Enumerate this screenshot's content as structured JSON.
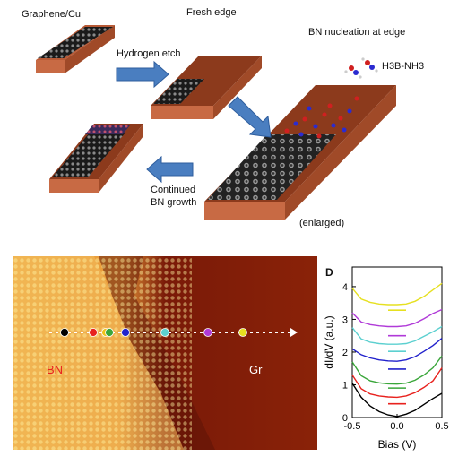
{
  "labels": {
    "graphene_cu": "Graphene/Cu",
    "fresh_edge": "Fresh edge",
    "bn_nucleation": "BN nucleation at edge",
    "hydrogen_etch": "Hydrogen etch",
    "precursor": "H3B-NH3",
    "continued_1": "Continued",
    "continued_2": "BN growth",
    "enlarged": "(enlarged)",
    "bn": "BN",
    "gr": "Gr",
    "panel_letter": "D"
  },
  "colors": {
    "cu_top": "#8c3a1c",
    "cu_side": "#b85a36",
    "arrow": "#4a7ec0",
    "bn_red": "#e0282a",
    "gr_white": "#ffffff"
  },
  "spectroscopy_markers": [
    "#000000",
    "#e8221e",
    "#f0c21a",
    "#3aa63a",
    "#2222cc",
    "#5cd0d0",
    "#b03ad8",
    "#e6e020"
  ],
  "chart_data": {
    "type": "line",
    "xlabel": "Bias (V)",
    "ylabel": "dI/dV (a.u.)",
    "xlim": [
      -0.5,
      0.5
    ],
    "ylim": [
      0,
      4.6
    ],
    "xticks": [
      "-0.5",
      "0.0",
      "0.5"
    ],
    "yticks": [
      "0",
      "1",
      "2",
      "3",
      "4"
    ],
    "x": [
      -0.5,
      -0.4,
      -0.3,
      -0.2,
      -0.1,
      0.0,
      0.1,
      0.2,
      0.3,
      0.4,
      0.5
    ],
    "series": [
      {
        "color": "#000000",
        "values": [
          1.05,
          0.62,
          0.35,
          0.18,
          0.08,
          0.03,
          0.1,
          0.22,
          0.4,
          0.58,
          0.74
        ]
      },
      {
        "color": "#e8221e",
        "values": [
          1.3,
          0.88,
          0.72,
          0.66,
          0.63,
          0.62,
          0.66,
          0.76,
          0.92,
          1.12,
          1.52
        ]
      },
      {
        "color": "#3aa63a",
        "values": [
          1.7,
          1.28,
          1.12,
          1.06,
          1.03,
          1.02,
          1.05,
          1.14,
          1.3,
          1.52,
          1.88
        ]
      },
      {
        "color": "#2222cc",
        "values": [
          2.1,
          1.92,
          1.82,
          1.76,
          1.73,
          1.72,
          1.76,
          1.86,
          2.02,
          2.2,
          2.42
        ]
      },
      {
        "color": "#5cd0d0",
        "values": [
          2.75,
          2.4,
          2.3,
          2.26,
          2.24,
          2.24,
          2.26,
          2.34,
          2.48,
          2.62,
          2.78
        ]
      },
      {
        "color": "#b03ad8",
        "values": [
          3.2,
          2.92,
          2.84,
          2.8,
          2.78,
          2.78,
          2.8,
          2.88,
          3.02,
          3.18,
          3.3
        ]
      },
      {
        "color": "#e6e020",
        "values": [
          3.95,
          3.62,
          3.52,
          3.47,
          3.45,
          3.45,
          3.47,
          3.55,
          3.7,
          3.9,
          4.1
        ]
      }
    ],
    "gap_markers": [
      {
        "color": "#e8221e",
        "y": 0.42
      },
      {
        "color": "#3aa63a",
        "y": 0.9
      },
      {
        "color": "#2222cc",
        "y": 1.48
      },
      {
        "color": "#5cd0d0",
        "y": 2.02
      },
      {
        "color": "#b03ad8",
        "y": 2.5
      },
      {
        "color": "#e6e020",
        "y": 3.28
      }
    ]
  }
}
